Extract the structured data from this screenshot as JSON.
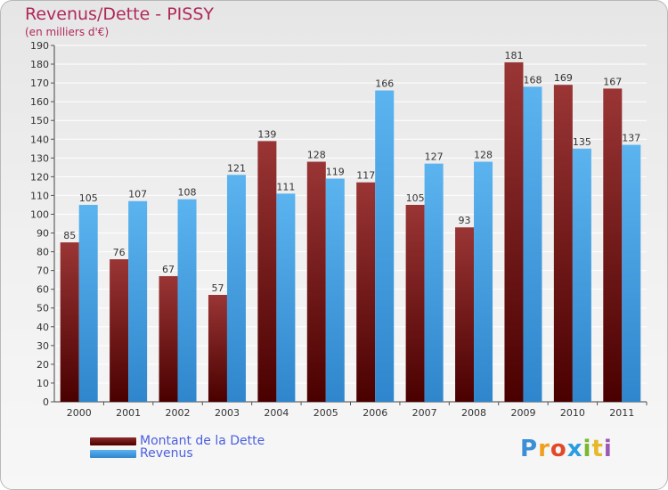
{
  "title": "Revenus/Dette - PISSY",
  "subtitle": "(en milliers d'€)",
  "legend": {
    "debt_label": "Montant de la Dette",
    "revenue_label": "Revenus"
  },
  "logo": {
    "text": "Proxiti"
  },
  "colors": {
    "debt": "#8b1a1a",
    "revenue": "#3f9be0",
    "title": "#b0285a",
    "legend_text": "#4b5fe0"
  },
  "chart_data": {
    "type": "bar",
    "categories": [
      "2000",
      "2001",
      "2002",
      "2003",
      "2004",
      "2005",
      "2006",
      "2007",
      "2008",
      "2009",
      "2010",
      "2011"
    ],
    "series": [
      {
        "name": "Montant de la Dette",
        "values": [
          85,
          76,
          67,
          57,
          139,
          128,
          117,
          105,
          93,
          181,
          169,
          167
        ]
      },
      {
        "name": "Revenus",
        "values": [
          105,
          107,
          108,
          121,
          111,
          119,
          166,
          127,
          128,
          168,
          135,
          137
        ]
      }
    ],
    "ylim": [
      0,
      190
    ],
    "ytick_step": 10,
    "grid": true,
    "legend_position": "bottom-left"
  }
}
